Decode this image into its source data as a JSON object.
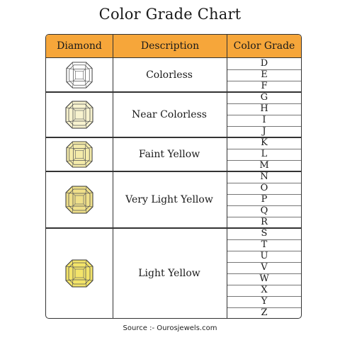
{
  "title": "Color Grade Chart",
  "headers": {
    "diamond": "Diamond",
    "description": "Description",
    "grade": "Color Grade"
  },
  "groups": [
    {
      "description": "Colorless",
      "grades": [
        "D",
        "E",
        "F"
      ],
      "fill": "#ffffff"
    },
    {
      "description": "Near Colorless",
      "grades": [
        "G",
        "H",
        "I",
        "J"
      ],
      "fill": "#f8f3cf"
    },
    {
      "description": "Faint Yellow",
      "grades": [
        "K",
        "L",
        "M"
      ],
      "fill": "#f4ebaa"
    },
    {
      "description": "Very Light Yellow",
      "grades": [
        "N",
        "O",
        "P",
        "Q",
        "R"
      ],
      "fill": "#efe08a"
    },
    {
      "description": "Light Yellow",
      "grades": [
        "S",
        "T",
        "U",
        "V",
        "W",
        "X",
        "Y",
        "Z"
      ],
      "fill": "#f3e46a"
    }
  ],
  "source": "Source :- Ourosjewels.com",
  "colors": {
    "header_bg": "#f6a63a",
    "border": "#333333"
  }
}
